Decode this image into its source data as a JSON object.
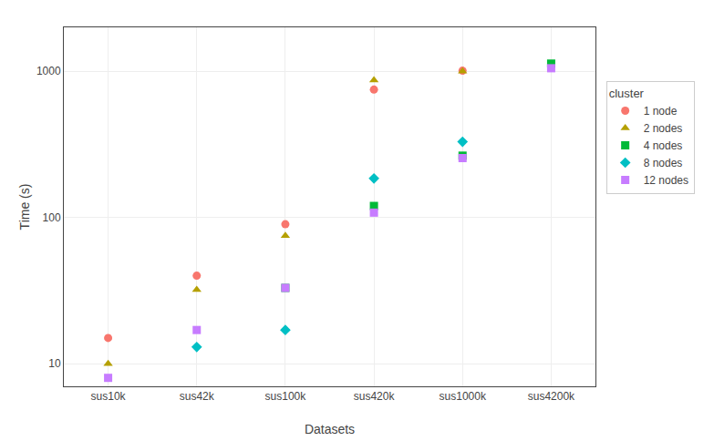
{
  "chart_data": {
    "type": "scatter",
    "xlabel": "Datasets",
    "ylabel": "Time (s)",
    "legend_title": "cluster",
    "categories": [
      "sus10k",
      "sus42k",
      "sus100k",
      "sus420k",
      "sus1000k",
      "sus4200k"
    ],
    "series": [
      {
        "name": "1 node",
        "color": "#F8766D",
        "marker": "circle",
        "values": [
          15,
          40,
          90,
          750,
          1010,
          null
        ]
      },
      {
        "name": "2 nodes",
        "color": "#B5A000",
        "marker": "triangle",
        "values": [
          10,
          32,
          75,
          870,
          1000,
          null
        ]
      },
      {
        "name": "4 nodes",
        "color": "#00BA38",
        "marker": "square",
        "values": [
          null,
          null,
          33,
          120,
          265,
          1130
        ]
      },
      {
        "name": "8 nodes",
        "color": "#00BFC4",
        "marker": "diamond",
        "values": [
          null,
          13,
          17,
          185,
          330,
          null
        ]
      },
      {
        "name": "12 nodes",
        "color": "#C77CFF",
        "marker": "square",
        "values": [
          8,
          17,
          33,
          108,
          255,
          1050
        ]
      }
    ],
    "log": "y",
    "ylim": [
      7,
      2000
    ],
    "yticks": [
      10,
      100,
      1000
    ],
    "grid": true,
    "legend": "right"
  }
}
